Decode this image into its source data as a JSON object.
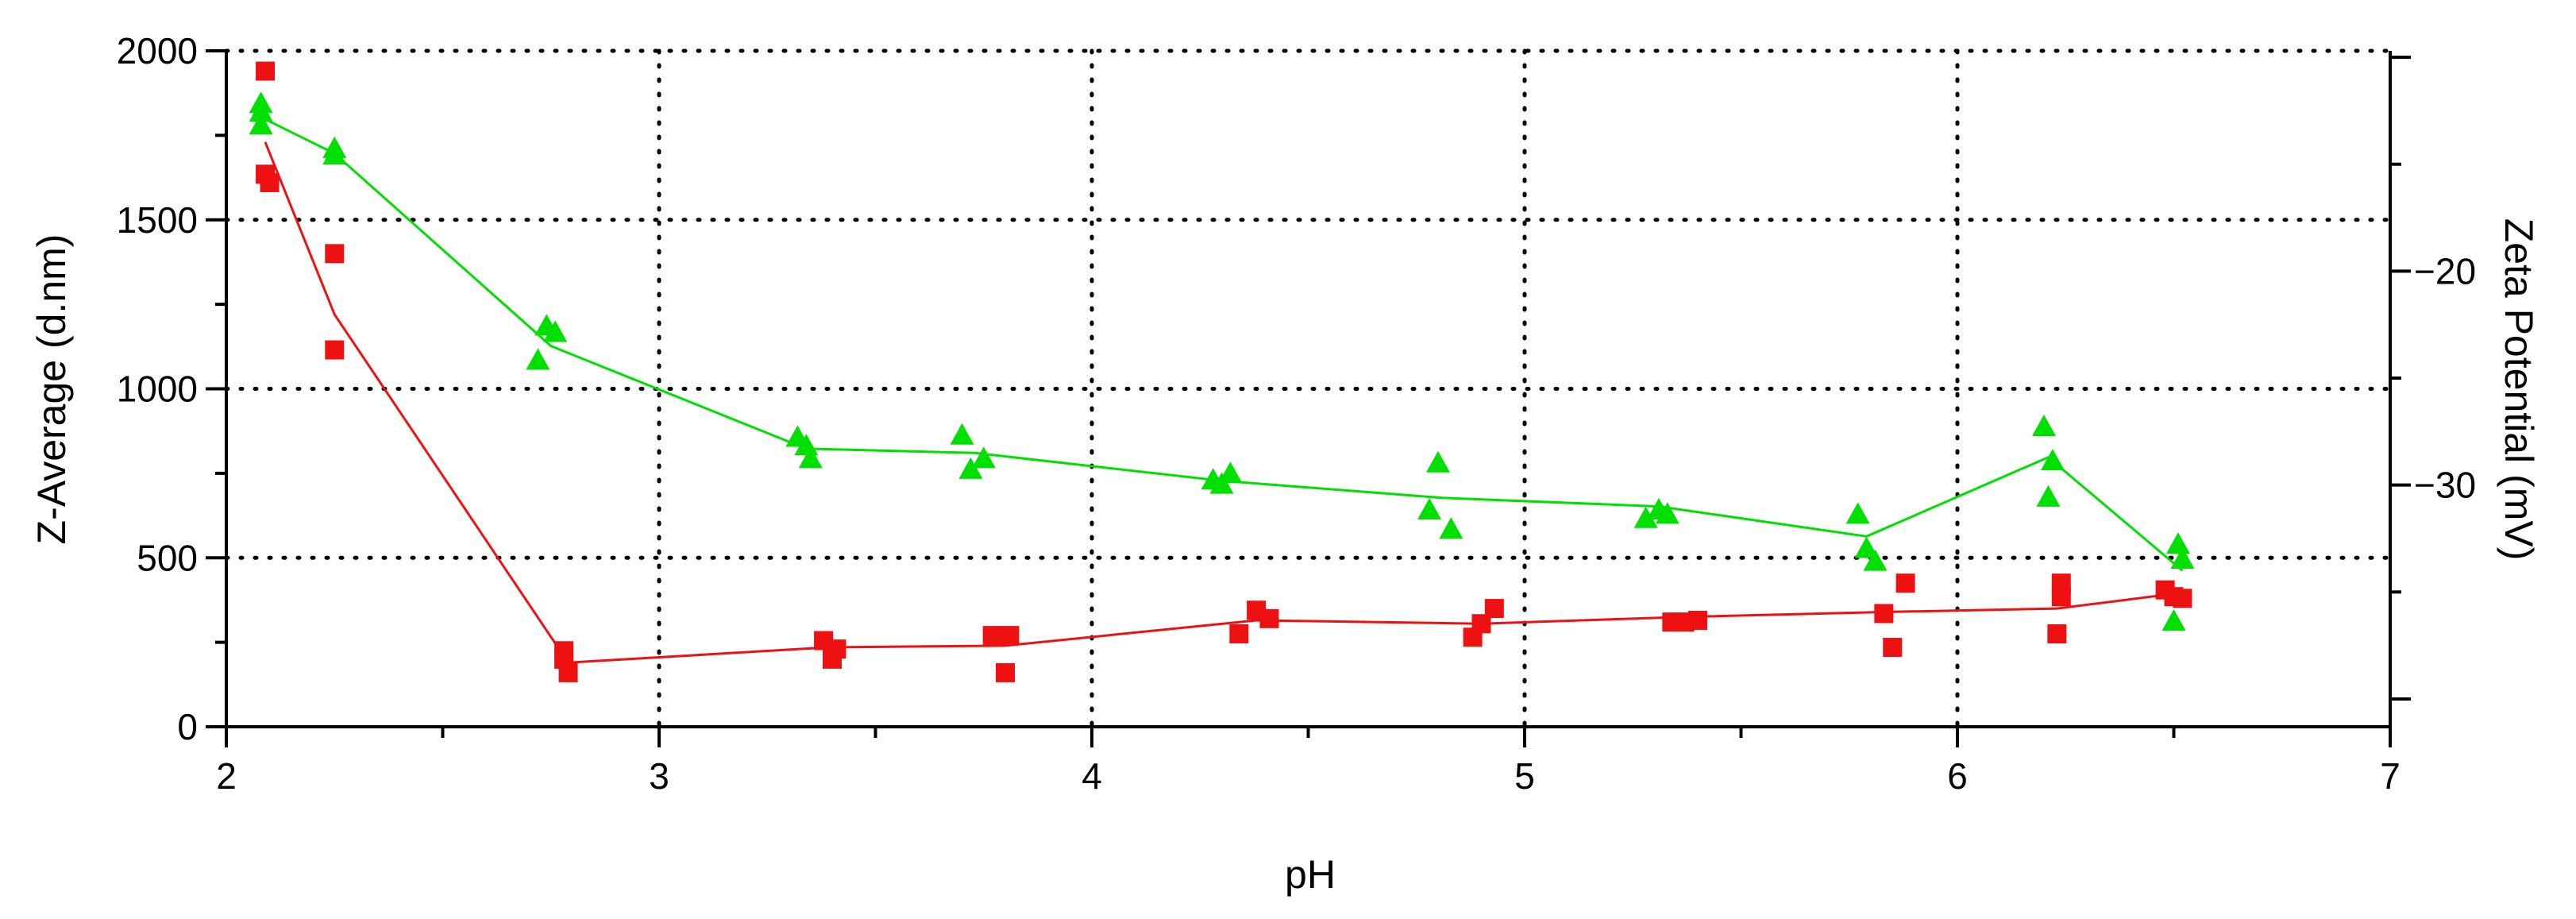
{
  "chart_data": {
    "type": "scatter",
    "xlabel": "pH",
    "ylabel": "Z-Average (d.nm)",
    "y2label": "Zeta Potential (mV)",
    "xlim": [
      2,
      7
    ],
    "ylim": [
      0,
      2000
    ],
    "y2lim": [
      -41.3,
      -9.7
    ],
    "x_ticks": [
      "2",
      "3",
      "4",
      "5",
      "6",
      "7"
    ],
    "y_ticks": [
      "0",
      "500",
      "1000",
      "1500",
      "2000"
    ],
    "y2_ticks": [
      "−30",
      "−20"
    ],
    "grid": true,
    "series": [
      {
        "axis": "left",
        "marker": "square",
        "color": "#ee1111",
        "points": [
          [
            2.09,
            1940
          ],
          [
            2.09,
            1635
          ],
          [
            2.1,
            1610
          ],
          [
            2.25,
            1400
          ],
          [
            2.25,
            1115
          ],
          [
            2.78,
            225
          ],
          [
            2.78,
            200
          ],
          [
            2.79,
            160
          ],
          [
            3.38,
            255
          ],
          [
            3.41,
            230
          ],
          [
            3.4,
            200
          ],
          [
            3.77,
            270
          ],
          [
            3.81,
            270
          ],
          [
            3.8,
            160
          ],
          [
            4.34,
            275
          ],
          [
            4.38,
            345
          ],
          [
            4.41,
            320
          ],
          [
            4.88,
            265
          ],
          [
            4.9,
            305
          ],
          [
            4.93,
            350
          ],
          [
            5.34,
            310
          ],
          [
            5.37,
            310
          ],
          [
            5.4,
            315
          ],
          [
            5.83,
            335
          ],
          [
            5.85,
            235
          ],
          [
            5.88,
            425
          ],
          [
            6.24,
            425
          ],
          [
            6.24,
            385
          ],
          [
            6.23,
            275
          ],
          [
            6.48,
            405
          ],
          [
            6.5,
            385
          ],
          [
            6.52,
            380
          ]
        ],
        "trend": [
          [
            2.09,
            1730
          ],
          [
            2.25,
            1220
          ],
          [
            2.79,
            190
          ],
          [
            3.39,
            235
          ],
          [
            3.8,
            240
          ],
          [
            4.38,
            315
          ],
          [
            4.9,
            305
          ],
          [
            5.37,
            325
          ],
          [
            5.85,
            340
          ],
          [
            6.23,
            350
          ],
          [
            6.51,
            395
          ]
        ]
      },
      {
        "axis": "right",
        "marker": "triangle",
        "color": "#00e000",
        "points": [
          [
            2.08,
            -12.2
          ],
          [
            2.08,
            -12.6
          ],
          [
            2.08,
            -13.2
          ],
          [
            2.25,
            -14.3
          ],
          [
            2.25,
            -14.6
          ],
          [
            2.72,
            -24.2
          ],
          [
            2.74,
            -22.6
          ],
          [
            2.76,
            -22.9
          ],
          [
            3.32,
            -27.8
          ],
          [
            3.34,
            -28.2
          ],
          [
            3.35,
            -28.8
          ],
          [
            3.7,
            -27.7
          ],
          [
            3.72,
            -29.3
          ],
          [
            3.75,
            -28.8
          ],
          [
            4.28,
            -29.8
          ],
          [
            4.3,
            -30.0
          ],
          [
            4.32,
            -29.5
          ],
          [
            4.78,
            -31.2
          ],
          [
            4.8,
            -29.0
          ],
          [
            4.83,
            -32.1
          ],
          [
            5.28,
            -31.6
          ],
          [
            5.31,
            -31.2
          ],
          [
            5.33,
            -31.4
          ],
          [
            5.77,
            -31.4
          ],
          [
            5.79,
            -33.0
          ],
          [
            5.81,
            -33.6
          ],
          [
            6.2,
            -27.3
          ],
          [
            6.22,
            -28.9
          ],
          [
            6.21,
            -30.6
          ],
          [
            6.51,
            -32.8
          ],
          [
            6.52,
            -33.5
          ],
          [
            6.5,
            -36.4
          ]
        ],
        "trend": [
          [
            2.08,
            -12.8
          ],
          [
            2.25,
            -14.5
          ],
          [
            2.75,
            -23.5
          ],
          [
            3.34,
            -28.3
          ],
          [
            3.73,
            -28.5
          ],
          [
            4.3,
            -29.8
          ],
          [
            4.81,
            -30.6
          ],
          [
            5.31,
            -31.0
          ],
          [
            5.79,
            -32.4
          ],
          [
            6.21,
            -28.7
          ],
          [
            6.52,
            -34.0
          ]
        ]
      }
    ]
  }
}
